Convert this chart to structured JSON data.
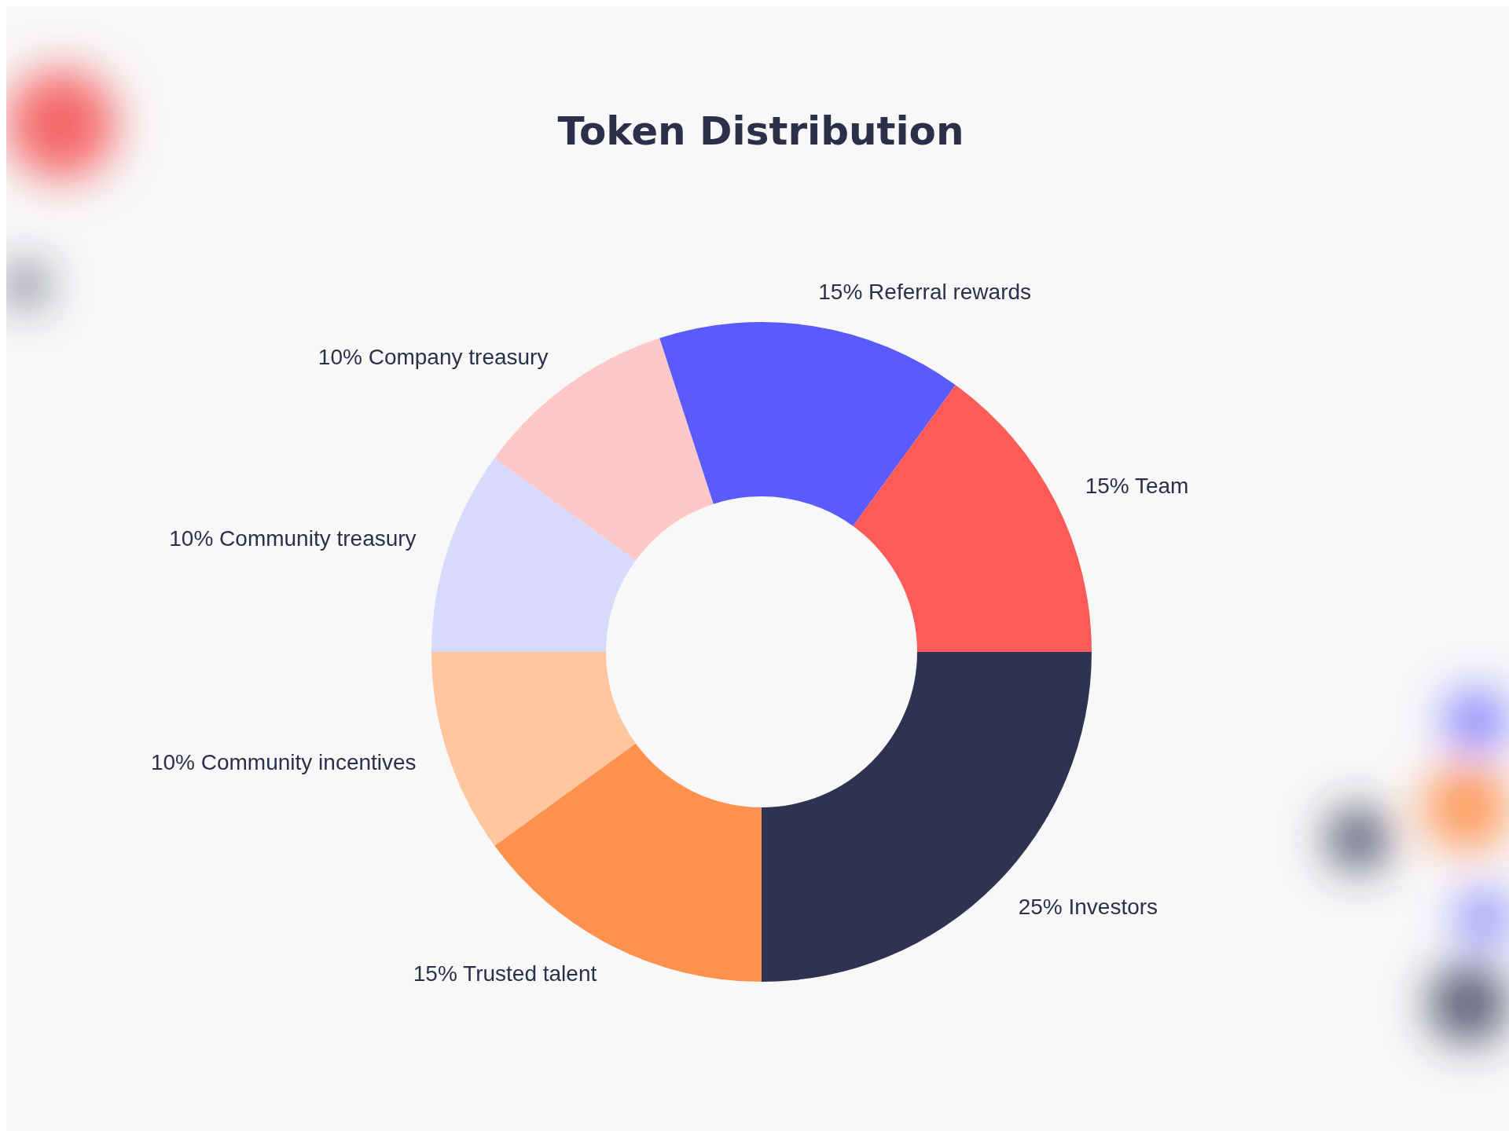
{
  "chart_data": {
    "type": "donut",
    "title": "Token Distribution",
    "categories": [
      "Investors",
      "Trusted talent",
      "Community incentives",
      "Community treasury",
      "Company treasury",
      "Referral rewards",
      "Team"
    ],
    "values": [
      25,
      15,
      10,
      10,
      10,
      15,
      15
    ],
    "value_labels": [
      "25%",
      "15%",
      "10%",
      "10%",
      "10%",
      "15%",
      "15%"
    ],
    "colors": [
      "#2f3352",
      "#fe914d",
      "#ffc6a0",
      "#d9d9fd",
      "#ffc8c8",
      "#5b5bfd",
      "#fd5a5a"
    ]
  }
}
